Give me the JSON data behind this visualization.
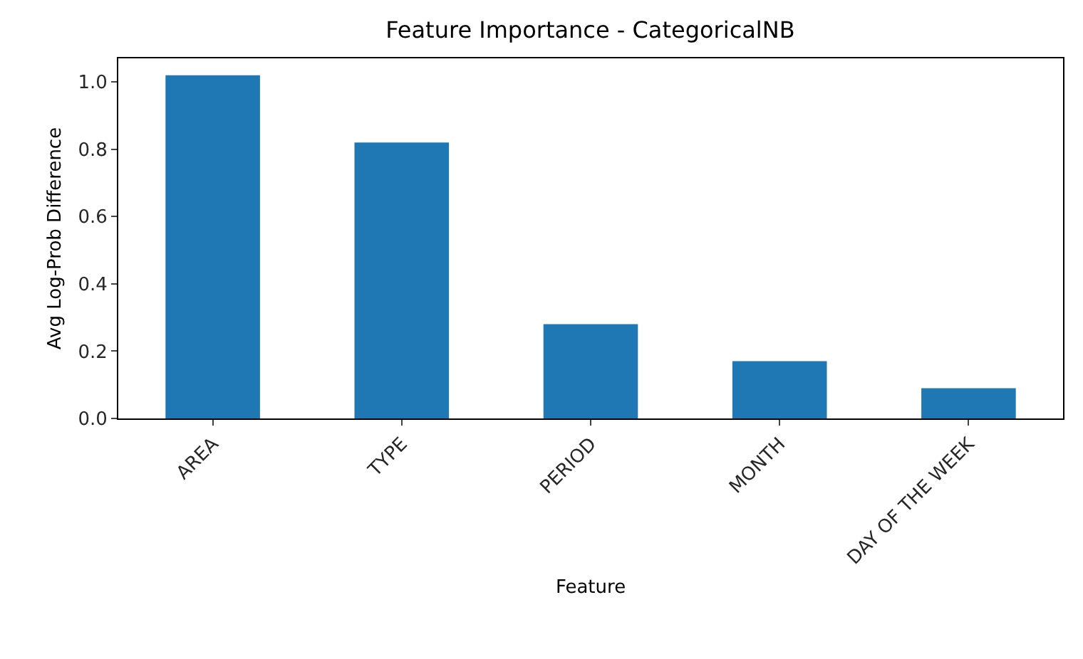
{
  "chart_data": {
    "type": "bar",
    "title": "Feature Importance - CategoricalNB",
    "xlabel": "Feature",
    "ylabel": "Avg Log-Prob Difference",
    "categories": [
      "AREA",
      "TYPE",
      "PERIOD",
      "MONTH",
      "DAY OF THE WEEK"
    ],
    "values": [
      1.02,
      0.82,
      0.28,
      0.17,
      0.09
    ],
    "color": "#1f77b4",
    "ylim": [
      0,
      1.07
    ],
    "yticks": [
      {
        "value": 0,
        "label": "0.0"
      },
      {
        "value": 0.2,
        "label": "0.2"
      },
      {
        "value": 0.4,
        "label": "0.4"
      },
      {
        "value": 0.6,
        "label": "0.6"
      },
      {
        "value": 0.8,
        "label": "0.8"
      },
      {
        "value": 1,
        "label": "1.0"
      }
    ],
    "grid": false,
    "legend": false
  }
}
